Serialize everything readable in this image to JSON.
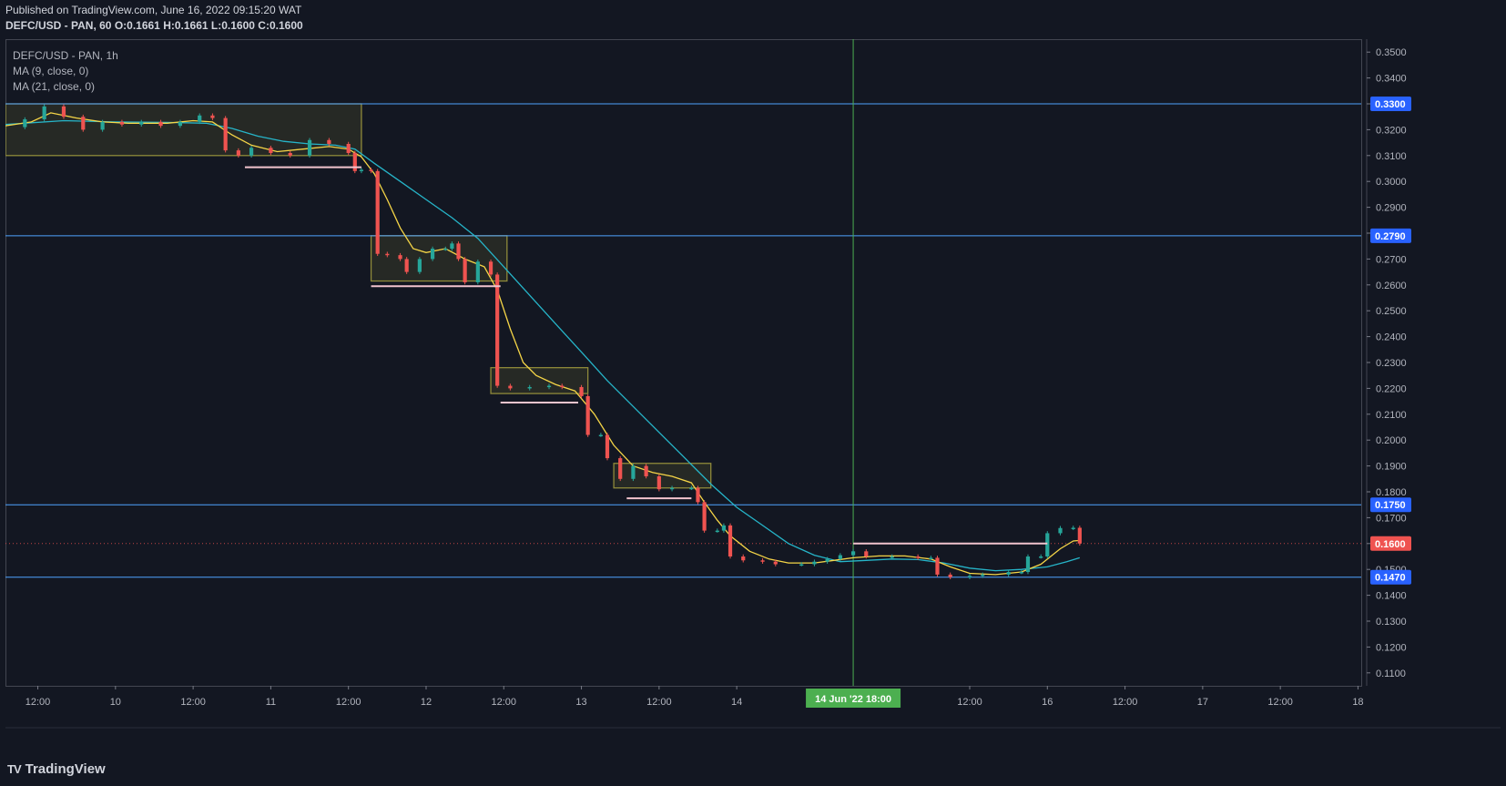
{
  "header": {
    "published": "Published on TradingView.com, June 16, 2022 09:15:20 WAT",
    "symbol": "DEFC/USD - PAN, 60",
    "ohlc": {
      "o_label": "O:",
      "o": "0.1661",
      "h_label": "H:",
      "h": "0.1661",
      "l_label": "L:",
      "l": "0.1600",
      "c_label": "C:",
      "c": "0.1600"
    }
  },
  "legend": {
    "symbol": "DEFC/USD - PAN, 1h",
    "ma9": "MA (9, close, 0)",
    "ma21": "MA (21, close, 0)"
  },
  "brand": {
    "logo_icon": "tradingview-logo-icon",
    "logo_mark": "TV",
    "name": "TradingView"
  },
  "colors": {
    "background": "#131722",
    "up": "#26a69a",
    "down": "#ef5350",
    "ma9": "#f5d547",
    "ma21": "#26b5c9",
    "level": "#2962ff",
    "level_line": "#4fa3ff",
    "crosshair": "#4caf50",
    "zone": "#8f8a3a",
    "support": "#f2c4ce",
    "price": "#ef5350"
  },
  "chart_data": {
    "type": "candlestick",
    "title": "DEFC/USD - PAN, 1h",
    "ylim": [
      0.105,
      0.355
    ],
    "y_ticks": [
      "0.3500",
      "0.3400",
      "0.3300",
      "0.3200",
      "0.3100",
      "0.3000",
      "0.2900",
      "0.2800",
      "0.2700",
      "0.2600",
      "0.2500",
      "0.2400",
      "0.2300",
      "0.2200",
      "0.2100",
      "0.2000",
      "0.1900",
      "0.1800",
      "0.1700",
      "0.1600",
      "0.1500",
      "0.1400",
      "0.1300",
      "0.1200",
      "0.1100"
    ],
    "x_ticks": [
      {
        "label": "12:00",
        "t": -12
      },
      {
        "label": "10",
        "t": 0
      },
      {
        "label": "12:00",
        "t": 12
      },
      {
        "label": "11",
        "t": 24
      },
      {
        "label": "12:00",
        "t": 36
      },
      {
        "label": "12",
        "t": 48
      },
      {
        "label": "12:00",
        "t": 60
      },
      {
        "label": "13",
        "t": 72
      },
      {
        "label": "12:00",
        "t": 84
      },
      {
        "label": "14",
        "t": 96
      },
      {
        "label": "12:00",
        "t": 132
      },
      {
        "label": "16",
        "t": 144
      },
      {
        "label": "12:00",
        "t": 156
      },
      {
        "label": "17",
        "t": 168
      },
      {
        "label": "12:00",
        "t": 180
      },
      {
        "label": "18",
        "t": 192
      }
    ],
    "xlim": [
      -17,
      192.5
    ],
    "crosshair": {
      "t": 114,
      "label": "14 Jun '22   18:00"
    },
    "levels": [
      {
        "value": 0.33,
        "label": "0.3300"
      },
      {
        "value": 0.279,
        "label": "0.2790"
      },
      {
        "value": 0.175,
        "label": "0.1750"
      },
      {
        "value": 0.147,
        "label": "0.1470"
      }
    ],
    "current_price": {
      "value": 0.16,
      "label": "0.1600"
    },
    "zones": [
      {
        "t0": -17,
        "t1": 38,
        "top": 0.33,
        "bottom": 0.31
      },
      {
        "t0": 39.5,
        "t1": 60.5,
        "top": 0.279,
        "bottom": 0.2615
      },
      {
        "t0": 58,
        "t1": 73,
        "top": 0.228,
        "bottom": 0.218
      },
      {
        "t0": 77,
        "t1": 92,
        "top": 0.191,
        "bottom": 0.1815
      }
    ],
    "support_lines": [
      {
        "t0": 20,
        "t1": 38,
        "value": 0.3055
      },
      {
        "t0": 39.5,
        "t1": 59.5,
        "value": 0.2595
      },
      {
        "t0": 59.5,
        "t1": 71.5,
        "value": 0.2145
      },
      {
        "t0": 79,
        "t1": 89,
        "value": 0.1775
      },
      {
        "t0": 114,
        "t1": 144,
        "value": 0.16
      }
    ],
    "series_points": [
      [
        -17,
        0.321
      ],
      [
        -14,
        0.324
      ],
      [
        -11,
        0.329
      ],
      [
        -8,
        0.325
      ],
      [
        -5,
        0.32
      ],
      [
        -2,
        0.323
      ],
      [
        1,
        0.322
      ],
      [
        4,
        0.323
      ],
      [
        7,
        0.3215
      ],
      [
        10,
        0.323
      ],
      [
        13,
        0.3255
      ],
      [
        15,
        0.3245
      ],
      [
        17,
        0.312
      ],
      [
        19,
        0.31
      ],
      [
        21,
        0.313
      ],
      [
        24,
        0.311
      ],
      [
        27,
        0.31
      ],
      [
        30,
        0.316
      ],
      [
        33,
        0.3145
      ],
      [
        36,
        0.311
      ],
      [
        37,
        0.304
      ],
      [
        38,
        0.3045
      ],
      [
        39.5,
        0.304
      ],
      [
        40.5,
        0.272
      ],
      [
        42,
        0.2715
      ],
      [
        44,
        0.27
      ],
      [
        45,
        0.265
      ],
      [
        47,
        0.27
      ],
      [
        49,
        0.274
      ],
      [
        51,
        0.274
      ],
      [
        52,
        0.276
      ],
      [
        53,
        0.27
      ],
      [
        54,
        0.261
      ],
      [
        56,
        0.269
      ],
      [
        58,
        0.264
      ],
      [
        59,
        0.221
      ],
      [
        61,
        0.22
      ],
      [
        64,
        0.2205
      ],
      [
        67,
        0.221
      ],
      [
        69,
        0.2205
      ],
      [
        72,
        0.217
      ],
      [
        73,
        0.202
      ],
      [
        75,
        0.202
      ],
      [
        76,
        0.193
      ],
      [
        78,
        0.185
      ],
      [
        80,
        0.19
      ],
      [
        82,
        0.186
      ],
      [
        84,
        0.181
      ],
      [
        86,
        0.1815
      ],
      [
        89,
        0.1815
      ],
      [
        90,
        0.176
      ],
      [
        91,
        0.165
      ],
      [
        93,
        0.165
      ],
      [
        94,
        0.167
      ],
      [
        95,
        0.155
      ],
      [
        97,
        0.1535
      ],
      [
        100,
        0.153
      ],
      [
        102,
        0.152
      ],
      [
        106,
        0.152
      ],
      [
        108,
        0.153
      ],
      [
        110,
        0.154
      ],
      [
        112,
        0.1555
      ],
      [
        114,
        0.157
      ],
      [
        116,
        0.155
      ],
      [
        120,
        0.155
      ],
      [
        124,
        0.1545
      ],
      [
        126,
        0.1545
      ],
      [
        127,
        0.148
      ],
      [
        129,
        0.147
      ],
      [
        132,
        0.1475
      ],
      [
        134,
        0.148
      ],
      [
        138,
        0.149
      ],
      [
        140,
        0.149
      ],
      [
        141,
        0.155
      ],
      [
        143,
        0.155
      ],
      [
        144,
        0.164
      ],
      [
        146,
        0.166
      ],
      [
        148,
        0.1661
      ],
      [
        149,
        0.16
      ]
    ],
    "ma9_points": [
      [
        -17,
        0.3215
      ],
      [
        -13,
        0.323
      ],
      [
        -10,
        0.3265
      ],
      [
        -6,
        0.3245
      ],
      [
        -2,
        0.323
      ],
      [
        2,
        0.3225
      ],
      [
        8,
        0.3225
      ],
      [
        12,
        0.3235
      ],
      [
        15,
        0.323
      ],
      [
        18,
        0.318
      ],
      [
        21,
        0.314
      ],
      [
        25,
        0.3115
      ],
      [
        29,
        0.3125
      ],
      [
        33,
        0.3135
      ],
      [
        36,
        0.3125
      ],
      [
        38,
        0.3095
      ],
      [
        40,
        0.303
      ],
      [
        42,
        0.293
      ],
      [
        44,
        0.282
      ],
      [
        46,
        0.274
      ],
      [
        48,
        0.2725
      ],
      [
        51,
        0.274
      ],
      [
        54,
        0.27
      ],
      [
        57,
        0.267
      ],
      [
        59,
        0.258
      ],
      [
        61,
        0.243
      ],
      [
        63,
        0.23
      ],
      [
        65,
        0.225
      ],
      [
        68,
        0.2215
      ],
      [
        71,
        0.219
      ],
      [
        74,
        0.21
      ],
      [
        77,
        0.198
      ],
      [
        80,
        0.19
      ],
      [
        83,
        0.1875
      ],
      [
        86,
        0.186
      ],
      [
        89,
        0.1835
      ],
      [
        91,
        0.176
      ],
      [
        93,
        0.169
      ],
      [
        95,
        0.163
      ],
      [
        98,
        0.157
      ],
      [
        101,
        0.154
      ],
      [
        104,
        0.1525
      ],
      [
        108,
        0.1525
      ],
      [
        111,
        0.1535
      ],
      [
        114,
        0.1545
      ],
      [
        118,
        0.1552
      ],
      [
        122,
        0.1552
      ],
      [
        126,
        0.154
      ],
      [
        129,
        0.151
      ],
      [
        132,
        0.1485
      ],
      [
        136,
        0.148
      ],
      [
        140,
        0.149
      ],
      [
        143,
        0.152
      ],
      [
        146,
        0.158
      ],
      [
        148,
        0.161
      ],
      [
        149,
        0.1612
      ]
    ],
    "ma21_points": [
      [
        -17,
        0.322
      ],
      [
        -8,
        0.3235
      ],
      [
        0,
        0.323
      ],
      [
        8,
        0.3228
      ],
      [
        14,
        0.3225
      ],
      [
        18,
        0.3205
      ],
      [
        22,
        0.3175
      ],
      [
        26,
        0.3155
      ],
      [
        30,
        0.3145
      ],
      [
        34,
        0.314
      ],
      [
        37,
        0.3125
      ],
      [
        40,
        0.307
      ],
      [
        44,
        0.3
      ],
      [
        48,
        0.293
      ],
      [
        52,
        0.286
      ],
      [
        56,
        0.278
      ],
      [
        60,
        0.267
      ],
      [
        64,
        0.256
      ],
      [
        68,
        0.245
      ],
      [
        72,
        0.234
      ],
      [
        76,
        0.223
      ],
      [
        80,
        0.213
      ],
      [
        84,
        0.203
      ],
      [
        88,
        0.193
      ],
      [
        92,
        0.183
      ],
      [
        96,
        0.174
      ],
      [
        100,
        0.167
      ],
      [
        104,
        0.16
      ],
      [
        108,
        0.1555
      ],
      [
        112,
        0.153
      ],
      [
        116,
        0.1535
      ],
      [
        120,
        0.154
      ],
      [
        124,
        0.1538
      ],
      [
        128,
        0.1525
      ],
      [
        132,
        0.1505
      ],
      [
        136,
        0.1495
      ],
      [
        140,
        0.15
      ],
      [
        144,
        0.151
      ],
      [
        147,
        0.153
      ],
      [
        149,
        0.1545
      ]
    ]
  }
}
